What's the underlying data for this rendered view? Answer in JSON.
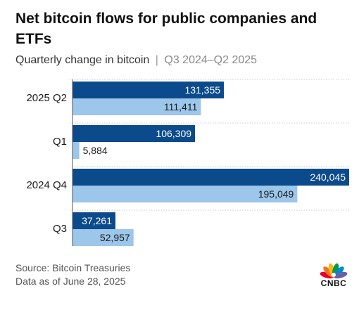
{
  "title": "Net bitcoin flows for public companies and ETFs",
  "subtitle": {
    "main": "Quarterly change in bitcoin",
    "separator": "|",
    "range": "Q3 2024–Q2 2025"
  },
  "footer": {
    "source": "Source: Bitcoin Treasuries",
    "date": "Data as of June 28, 2025"
  },
  "logo": {
    "text": "CNBC",
    "icon": "peacock-icon"
  },
  "colors": {
    "dark_series": "#0b4b8c",
    "light_series": "#9cc6ea",
    "text": "#1a1a1a"
  },
  "chart_data": {
    "type": "bar",
    "orientation": "horizontal",
    "categories": [
      "2025 Q2",
      "Q1",
      "2024 Q4",
      "Q3"
    ],
    "series": [
      {
        "values": [
          131355,
          106309,
          240045,
          37261
        ]
      },
      {
        "values": [
          111411,
          5884,
          195049,
          52957
        ]
      }
    ],
    "data_labels": [
      [
        "131,355",
        "106,309",
        "240,045",
        "37,261"
      ],
      [
        "111,411",
        "5,884",
        "195,049",
        "52,957"
      ]
    ],
    "xlim": [
      0,
      240045
    ],
    "grid": false,
    "legend": "none"
  }
}
